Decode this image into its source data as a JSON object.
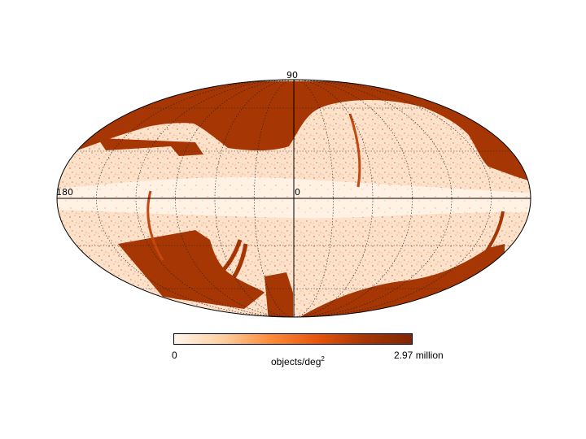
{
  "map": {
    "projection": "Mollweide",
    "labels": {
      "north_pole": "90",
      "left_edge": "180",
      "center": "0"
    },
    "colors": {
      "low": "#fff5eb",
      "mid": "#fd8d3c",
      "high": "#a63603",
      "max": "#7f2704"
    }
  },
  "colorbar": {
    "min_label": "0",
    "max_label": "2.97 million",
    "unit_text": "objects/deg",
    "unit_exponent": "2",
    "stops": [
      "#fff5eb",
      "#fdd0a2",
      "#fd8d3c",
      "#e6550d",
      "#a63603",
      "#7f2704"
    ]
  }
}
